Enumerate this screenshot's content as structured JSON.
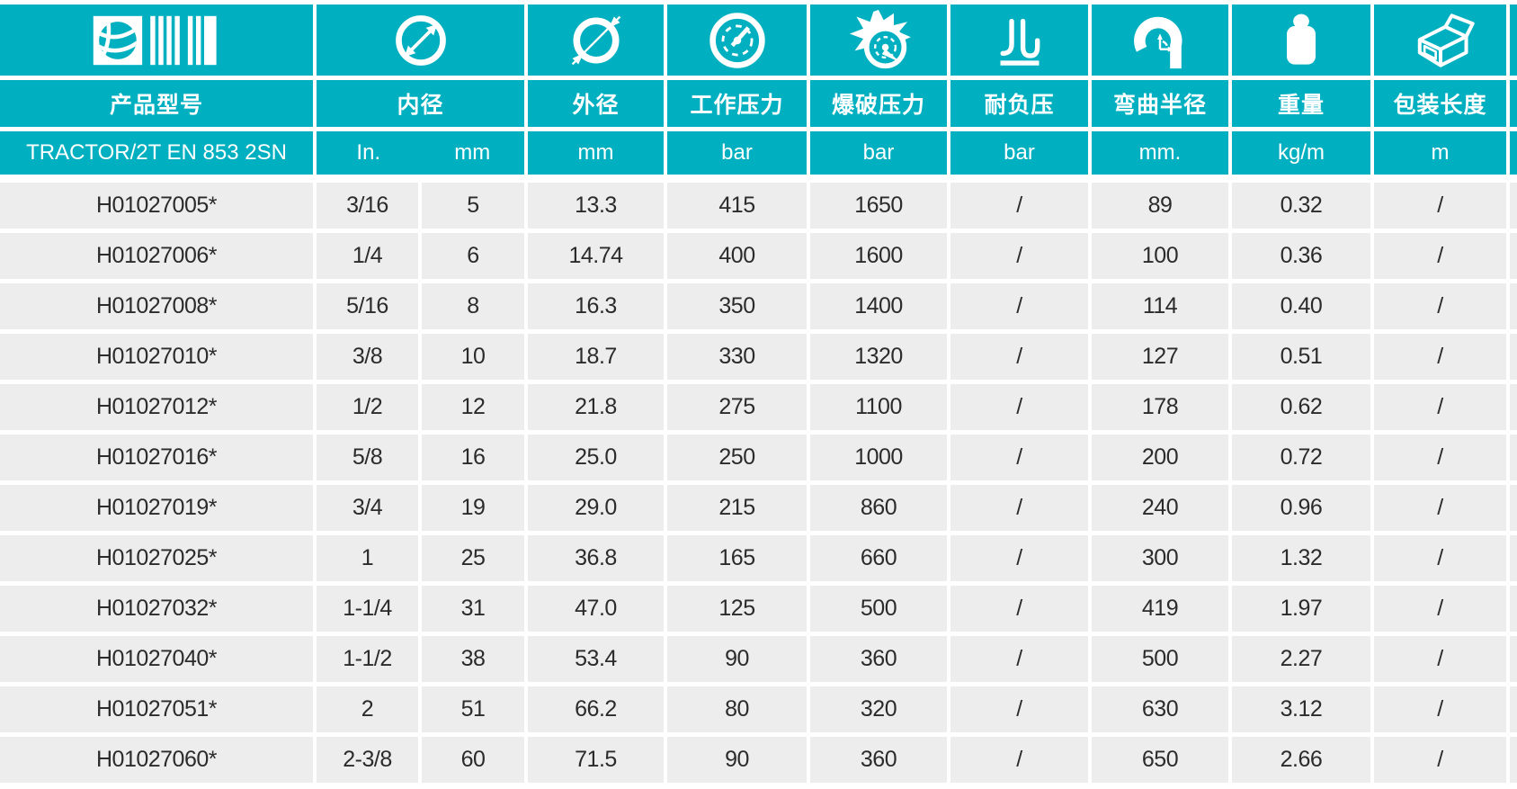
{
  "colors": {
    "teal": "#00b0c0",
    "row_background": "#ededed",
    "divider": "#ffffff",
    "text_dark": "#2b2b2b",
    "header_text": "#ffffff"
  },
  "table": {
    "series_name": "TRACTOR/2T EN 853 2SN",
    "columns": [
      {
        "key": "product",
        "icon": "globe-barcode-logo-icon",
        "header": "产品型号",
        "unit": "TRACTOR/2T EN 853 2SN"
      },
      {
        "key": "inner_diameter",
        "icon": "inner-diameter-icon",
        "header": "内径",
        "unit_in": "In.",
        "unit_mm": "mm"
      },
      {
        "key": "outer_diameter",
        "icon": "outer-diameter-icon",
        "header": "外径",
        "unit": "mm"
      },
      {
        "key": "working_pressure",
        "icon": "pressure-gauge-icon",
        "header": "工作压力",
        "unit": "bar"
      },
      {
        "key": "burst_pressure",
        "icon": "burst-gauge-icon",
        "header": "爆破压力",
        "unit": "bar"
      },
      {
        "key": "vacuum_resistance",
        "icon": "vacuum-resistance-icon",
        "header": "耐负压",
        "unit": "bar"
      },
      {
        "key": "bend_radius",
        "icon": "bend-radius-icon",
        "header": "弯曲半径",
        "unit": "mm."
      },
      {
        "key": "weight",
        "icon": "weight-icon",
        "header": "重量",
        "unit": "kg/m"
      },
      {
        "key": "package_length",
        "icon": "package-box-icon",
        "header": "包装长度",
        "unit": "m"
      }
    ],
    "rows": [
      [
        "H01027005*",
        "3/16",
        "5",
        "13.3",
        "415",
        "1650",
        "/",
        "89",
        "0.32",
        "/"
      ],
      [
        "H01027006*",
        "1/4",
        "6",
        "14.74",
        "400",
        "1600",
        "/",
        "100",
        "0.36",
        "/"
      ],
      [
        "H01027008*",
        "5/16",
        "8",
        "16.3",
        "350",
        "1400",
        "/",
        "114",
        "0.40",
        "/"
      ],
      [
        "H01027010*",
        "3/8",
        "10",
        "18.7",
        "330",
        "1320",
        "/",
        "127",
        "0.51",
        "/"
      ],
      [
        "H01027012*",
        "1/2",
        "12",
        "21.8",
        "275",
        "1100",
        "/",
        "178",
        "0.62",
        "/"
      ],
      [
        "H01027016*",
        "5/8",
        "16",
        "25.0",
        "250",
        "1000",
        "/",
        "200",
        "0.72",
        "/"
      ],
      [
        "H01027019*",
        "3/4",
        "19",
        "29.0",
        "215",
        "860",
        "/",
        "240",
        "0.96",
        "/"
      ],
      [
        "H01027025*",
        "1",
        "25",
        "36.8",
        "165",
        "660",
        "/",
        "300",
        "1.32",
        "/"
      ],
      [
        "H01027032*",
        "1-1/4",
        "31",
        "47.0",
        "125",
        "500",
        "/",
        "419",
        "1.97",
        "/"
      ],
      [
        "H01027040*",
        "1-1/2",
        "38",
        "53.4",
        "90",
        "360",
        "/",
        "500",
        "2.27",
        "/"
      ],
      [
        "H01027051*",
        "2",
        "51",
        "66.2",
        "80",
        "320",
        "/",
        "630",
        "3.12",
        "/"
      ],
      [
        "H01027060*",
        "2-3/8",
        "60",
        "71.5",
        "90",
        "360",
        "/",
        "650",
        "2.66",
        "/"
      ]
    ]
  }
}
